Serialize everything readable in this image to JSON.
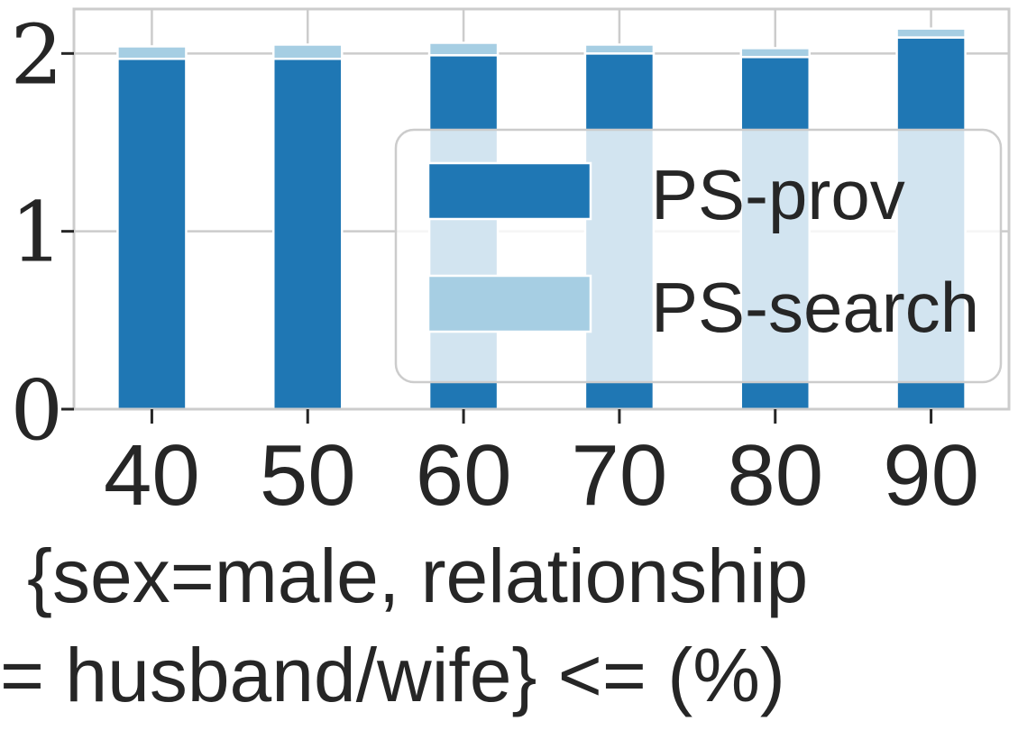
{
  "chart_data": {
    "type": "bar",
    "stacked": true,
    "categories": [
      "40",
      "50",
      "60",
      "70",
      "80",
      "90"
    ],
    "series": [
      {
        "name": "PS-prov",
        "values": [
          1.97,
          1.97,
          1.99,
          2.0,
          1.98,
          2.09
        ],
        "color": "#1f77b4"
      },
      {
        "name": "PS-search",
        "values": [
          0.07,
          0.08,
          0.07,
          0.05,
          0.05,
          0.05
        ],
        "color": "#a6cee3"
      }
    ],
    "xlabel": [
      "{sex=male, relationship",
      "= husband/wife} <= (%)"
    ],
    "ylabel": "",
    "ylim": [
      0,
      2.25
    ],
    "yticks": [
      0,
      1,
      2
    ],
    "grid": true,
    "legend_position": "center-right"
  }
}
